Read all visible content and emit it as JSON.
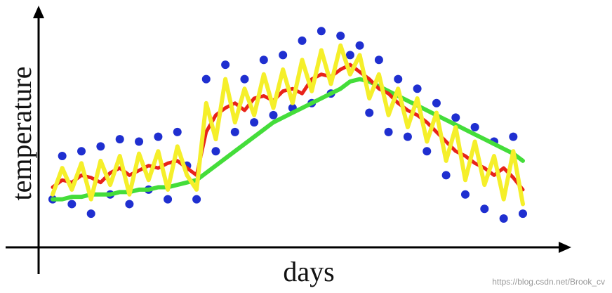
{
  "chart_data": {
    "type": "scatter-lines",
    "x_label": "days",
    "y_label": "temperature",
    "watermark": "https://blog.csdn.net/Brook_cv",
    "xlim": [
      1,
      50
    ],
    "ylim": [
      0,
      100
    ],
    "x": [
      1,
      2,
      3,
      4,
      5,
      6,
      7,
      8,
      9,
      10,
      11,
      12,
      13,
      14,
      15,
      16,
      17,
      18,
      19,
      20,
      21,
      22,
      23,
      24,
      25,
      26,
      27,
      28,
      29,
      30,
      31,
      32,
      33,
      34,
      35,
      36,
      37,
      38,
      39,
      40,
      41,
      42,
      43,
      44,
      45,
      46,
      47,
      48,
      49,
      50
    ],
    "points": {
      "color": "#1f2fd0",
      "values": [
        20,
        38,
        18,
        40,
        14,
        42,
        22,
        45,
        18,
        44,
        24,
        46,
        20,
        48,
        34,
        20,
        70,
        40,
        76,
        48,
        70,
        52,
        78,
        55,
        80,
        58,
        86,
        60,
        90,
        64,
        88,
        80,
        84,
        56,
        78,
        48,
        70,
        46,
        66,
        40,
        60,
        30,
        54,
        22,
        50,
        16,
        44,
        12,
        46,
        14
      ]
    },
    "series": [
      {
        "color": "#44dd3a",
        "values": [
          20,
          20,
          21,
          21,
          22,
          22,
          22,
          23,
          23,
          24,
          24,
          25,
          25,
          26,
          27,
          28,
          31,
          34,
          37,
          40,
          43,
          46,
          49,
          52,
          54,
          56,
          58,
          60,
          62,
          64,
          66,
          69,
          70,
          69,
          67,
          65,
          63,
          61,
          59,
          57,
          55,
          53,
          51,
          49,
          47,
          45,
          43,
          41,
          39,
          36
        ]
      },
      {
        "color": "#e8231a",
        "values": [
          25,
          28,
          27,
          30,
          29,
          27,
          31,
          33,
          30,
          32,
          34,
          33,
          35,
          36,
          33,
          30,
          48,
          55,
          58,
          60,
          57,
          62,
          63,
          61,
          65,
          66,
          64,
          70,
          72,
          71,
          74,
          76,
          73,
          70,
          66,
          64,
          60,
          57,
          55,
          52,
          48,
          44,
          40,
          38,
          35,
          33,
          30,
          33,
          29,
          24
        ]
      },
      {
        "color": "#f5ef2a",
        "values": [
          22,
          33,
          24,
          35,
          20,
          36,
          26,
          38,
          22,
          39,
          28,
          40,
          24,
          42,
          30,
          24,
          60,
          45,
          70,
          52,
          66,
          55,
          72,
          58,
          74,
          60,
          78,
          65,
          82,
          68,
          84,
          72,
          80,
          62,
          72,
          55,
          66,
          50,
          62,
          44,
          56,
          36,
          50,
          28,
          44,
          26,
          38,
          20,
          40,
          18
        ]
      }
    ]
  }
}
